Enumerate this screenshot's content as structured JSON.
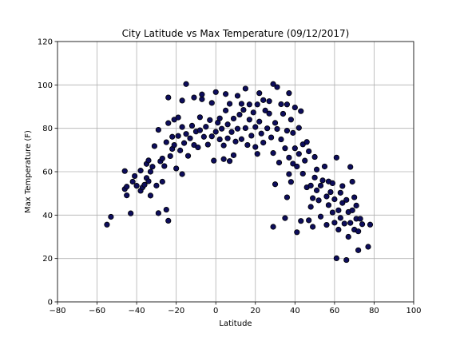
{
  "chart_data": {
    "type": "scatter",
    "title": "City Latitude vs Max Temperature (09/12/2017)",
    "xlabel": "Latitude",
    "ylabel": "Max Temperature (F)",
    "xlim": [
      -80,
      100
    ],
    "ylim": [
      0,
      120
    ],
    "xticks": [
      -80,
      -60,
      -40,
      -20,
      0,
      20,
      40,
      60,
      80,
      100
    ],
    "yticks": [
      0,
      20,
      40,
      60,
      80,
      100,
      120
    ],
    "grid": true,
    "legend": "none",
    "marker_fill": "#0d0d5c",
    "marker_edge": "#000000",
    "points": [
      [
        -55,
        35.6
      ],
      [
        -53,
        39.2
      ],
      [
        -46,
        60.3
      ],
      [
        -46,
        52.0
      ],
      [
        -45,
        49.1
      ],
      [
        -45,
        53.1
      ],
      [
        -43,
        40.8
      ],
      [
        -42,
        55.4
      ],
      [
        -41,
        58.0
      ],
      [
        -40,
        53.5
      ],
      [
        -38,
        51.2
      ],
      [
        -38,
        60.5
      ],
      [
        -37,
        52.8
      ],
      [
        -36,
        54.0
      ],
      [
        -35,
        57.1
      ],
      [
        -35,
        63.6
      ],
      [
        -34,
        65.2
      ],
      [
        -34,
        55.6
      ],
      [
        -33,
        60.0
      ],
      [
        -33,
        49.0
      ],
      [
        -32,
        62.3
      ],
      [
        -31,
        71.8
      ],
      [
        -30,
        53.6
      ],
      [
        -29,
        79.3
      ],
      [
        -29,
        40.9
      ],
      [
        -28,
        64.8
      ],
      [
        -27,
        66.1
      ],
      [
        -27,
        55.4
      ],
      [
        -26,
        62.6
      ],
      [
        -25,
        42.5
      ],
      [
        -25,
        73.6
      ],
      [
        -24,
        94.2
      ],
      [
        -24,
        37.4
      ],
      [
        -24,
        82.4
      ],
      [
        -23,
        67.2
      ],
      [
        -22,
        76.1
      ],
      [
        -22,
        70.5
      ],
      [
        -21,
        84.0
      ],
      [
        -21,
        72.3
      ],
      [
        -20,
        61.5
      ],
      [
        -19,
        85.0
      ],
      [
        -19,
        76.5
      ],
      [
        -18,
        69.8
      ],
      [
        -17,
        92.8
      ],
      [
        -17,
        80.6
      ],
      [
        -17,
        58.9
      ],
      [
        -16,
        73.2
      ],
      [
        -15,
        100.4
      ],
      [
        -15,
        77.4
      ],
      [
        -14,
        67.3
      ],
      [
        -13,
        75.4
      ],
      [
        -12,
        81.2
      ],
      [
        -11,
        94.2
      ],
      [
        -11,
        72.3
      ],
      [
        -10,
        78.5
      ],
      [
        -9,
        71.2
      ],
      [
        -8,
        85.1
      ],
      [
        -8,
        79.1
      ],
      [
        -7,
        93.4
      ],
      [
        -7,
        95.6
      ],
      [
        -6,
        76.1
      ],
      [
        -5,
        80.7
      ],
      [
        -4,
        72.5
      ],
      [
        -3,
        83.8
      ],
      [
        -2,
        91.7
      ],
      [
        -2,
        76.3
      ],
      [
        -1,
        65.1
      ],
      [
        0,
        96.7
      ],
      [
        0,
        78.4
      ],
      [
        1,
        82.6
      ],
      [
        2,
        74.9
      ],
      [
        2,
        84.6
      ],
      [
        3,
        79.8
      ],
      [
        4,
        65.8
      ],
      [
        4,
        72.1
      ],
      [
        5,
        95.8
      ],
      [
        5,
        88.2
      ],
      [
        6,
        81.8
      ],
      [
        6,
        75.4
      ],
      [
        7,
        91.3
      ],
      [
        7,
        64.9
      ],
      [
        8,
        78.3
      ],
      [
        9,
        67.6
      ],
      [
        9,
        84.5
      ],
      [
        10,
        73.9
      ],
      [
        11,
        95.0
      ],
      [
        11,
        79.8
      ],
      [
        12,
        86.3
      ],
      [
        13,
        91.3
      ],
      [
        13,
        75.0
      ],
      [
        14,
        88.5
      ],
      [
        15,
        98.3
      ],
      [
        15,
        80.1
      ],
      [
        16,
        72.3
      ],
      [
        17,
        91.0
      ],
      [
        17,
        84.0
      ],
      [
        18,
        76.6
      ],
      [
        19,
        87.3
      ],
      [
        20,
        80.6
      ],
      [
        20,
        71.4
      ],
      [
        21,
        91.0
      ],
      [
        21,
        68.2
      ],
      [
        22,
        96.2
      ],
      [
        22,
        83.1
      ],
      [
        23,
        77.6
      ],
      [
        24,
        93.0
      ],
      [
        24,
        73.4
      ],
      [
        25,
        88.2
      ],
      [
        26,
        80.0
      ],
      [
        27,
        86.8
      ],
      [
        27,
        92.5
      ],
      [
        28,
        75.8
      ],
      [
        29,
        100.4
      ],
      [
        29,
        68.6
      ],
      [
        29,
        34.6
      ],
      [
        30,
        54.2
      ],
      [
        30,
        82.5
      ],
      [
        31,
        99.0
      ],
      [
        31,
        79.7
      ],
      [
        32,
        64.2
      ],
      [
        33,
        91.1
      ],
      [
        33,
        74.9
      ],
      [
        34,
        86.7
      ],
      [
        35,
        70.8
      ],
      [
        35,
        38.6
      ],
      [
        36,
        91.0
      ],
      [
        36,
        78.9
      ],
      [
        36,
        48.2
      ],
      [
        37,
        96.2
      ],
      [
        37,
        66.5
      ],
      [
        37,
        58.9
      ],
      [
        38,
        84.0
      ],
      [
        38,
        55.3
      ],
      [
        39,
        77.9
      ],
      [
        39,
        63.7
      ],
      [
        40,
        89.6
      ],
      [
        40,
        70.8
      ],
      [
        41,
        32.1
      ],
      [
        41,
        62.4
      ],
      [
        42,
        80.2
      ],
      [
        42,
        68.2
      ],
      [
        43,
        87.9
      ],
      [
        43,
        37.3
      ],
      [
        44,
        72.6
      ],
      [
        44,
        59.1
      ],
      [
        45,
        65.1
      ],
      [
        46,
        52.8
      ],
      [
        46,
        73.7
      ],
      [
        47,
        37.6
      ],
      [
        47,
        69.4
      ],
      [
        48,
        43.8
      ],
      [
        48,
        53.6
      ],
      [
        49,
        34.6
      ],
      [
        49,
        47.8
      ],
      [
        50,
        66.8
      ],
      [
        50,
        57.3
      ],
      [
        51,
        51.4
      ],
      [
        51,
        61.0
      ],
      [
        52,
        46.8
      ],
      [
        53,
        39.3
      ],
      [
        53,
        53.6
      ],
      [
        54,
        56.0
      ],
      [
        55,
        62.4
      ],
      [
        56,
        48.6
      ],
      [
        56,
        35.5
      ],
      [
        57,
        44.6
      ],
      [
        57,
        55.5
      ],
      [
        58,
        50.6
      ],
      [
        59,
        41.2
      ],
      [
        59,
        54.7
      ],
      [
        60,
        36.5
      ],
      [
        60,
        47.3
      ],
      [
        61,
        20.1
      ],
      [
        61,
        66.5
      ],
      [
        62,
        33.3
      ],
      [
        62,
        42.2
      ],
      [
        63,
        50.3
      ],
      [
        63,
        38.7
      ],
      [
        64,
        45.6
      ],
      [
        64,
        53.4
      ],
      [
        65,
        36.1
      ],
      [
        66,
        19.3
      ],
      [
        66,
        47.0
      ],
      [
        67,
        41.4
      ],
      [
        67,
        30.0
      ],
      [
        68,
        62.2
      ],
      [
        68,
        36.4
      ],
      [
        69,
        55.4
      ],
      [
        69,
        42.2
      ],
      [
        70,
        33.3
      ],
      [
        70,
        48.2
      ],
      [
        71,
        38.3
      ],
      [
        71,
        44.4
      ],
      [
        72,
        32.5
      ],
      [
        72,
        23.8
      ],
      [
        73,
        38.3
      ],
      [
        74,
        35.8
      ],
      [
        77,
        25.4
      ],
      [
        78,
        35.6
      ]
    ]
  }
}
